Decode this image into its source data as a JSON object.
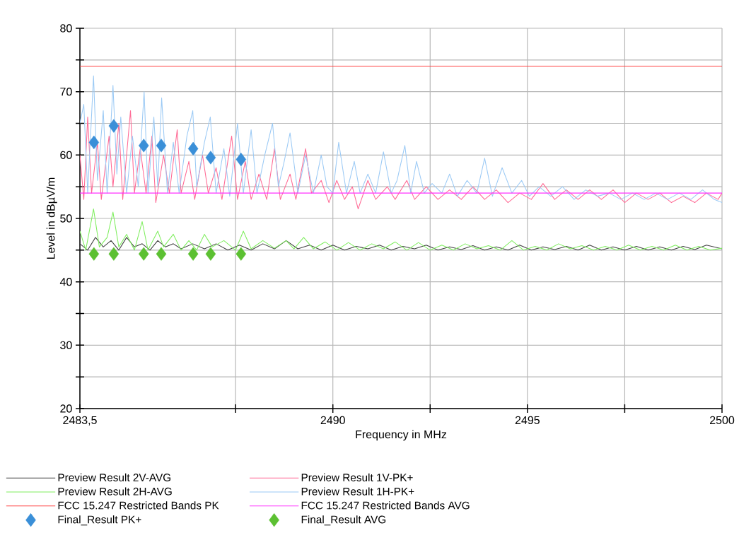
{
  "chart_data": {
    "type": "line",
    "xlabel": "Frequency in MHz",
    "ylabel": "Level in dBµV/m",
    "xlim": [
      2483.5,
      2500
    ],
    "ylim": [
      20,
      80
    ],
    "xticks": [
      {
        "value": 2483.5,
        "label": "2483,5"
      },
      {
        "value": 2487.5,
        "label": null
      },
      2490,
      {
        "value": 2492.5,
        "label": null
      },
      2495,
      {
        "value": 2497.5,
        "label": null
      },
      2500
    ],
    "yticks": [
      20,
      {
        "value": 25,
        "label": null
      },
      30,
      {
        "value": 35,
        "label": null
      },
      40,
      {
        "value": 45,
        "label": null
      },
      50,
      {
        "value": 55,
        "label": null
      },
      60,
      {
        "value": 65,
        "label": null
      },
      70,
      {
        "value": 75,
        "label": null
      },
      80
    ],
    "grid": true,
    "legend": "bottom",
    "line_style": "solid",
    "series": [
      {
        "name": "Preview Result 2V-AVG",
        "color": "#404040",
        "x": [
          2483.5,
          2483.7,
          2483.9,
          2484.1,
          2484.3,
          2484.5,
          2484.7,
          2484.9,
          2485.1,
          2485.3,
          2485.5,
          2485.7,
          2485.9,
          2486.1,
          2486.4,
          2486.7,
          2487.0,
          2487.3,
          2487.6,
          2487.9,
          2488.2,
          2488.5,
          2488.8,
          2489.1,
          2489.4,
          2489.7,
          2490.0,
          2490.3,
          2490.6,
          2490.9,
          2491.2,
          2491.5,
          2491.8,
          2492.1,
          2492.4,
          2492.7,
          2493.0,
          2493.3,
          2493.6,
          2493.9,
          2494.2,
          2494.5,
          2494.8,
          2495.1,
          2495.4,
          2495.7,
          2496.0,
          2496.3,
          2496.6,
          2496.9,
          2497.2,
          2497.5,
          2497.8,
          2498.1,
          2498.4,
          2498.7,
          2499.0,
          2499.3,
          2499.6,
          2500
        ],
        "values": [
          46,
          45,
          47,
          45.5,
          46.5,
          45,
          47,
          45.5,
          46,
          45,
          46.5,
          45.5,
          46,
          45.2,
          46,
          45.2,
          46,
          45,
          45.8,
          45,
          46,
          45.2,
          46.5,
          45.2,
          45.8,
          45,
          45.8,
          45,
          45.6,
          45.2,
          45.8,
          45,
          45.6,
          45.2,
          45.8,
          45,
          45.5,
          45.1,
          45.7,
          45,
          45.5,
          45,
          45.8,
          45,
          45.5,
          45.1,
          45.6,
          45,
          45.8,
          45,
          45.5,
          45,
          45.6,
          45,
          45.5,
          45,
          45.6,
          45.1,
          45.8,
          45.2
        ]
      },
      {
        "name": "Preview Result 1V-PK+",
        "color": "#ff6a95",
        "x": [
          2483.5,
          2483.6,
          2483.7,
          2483.8,
          2483.95,
          2484.05,
          2484.25,
          2484.35,
          2484.5,
          2484.6,
          2484.8,
          2484.9,
          2485.05,
          2485.2,
          2485.35,
          2485.45,
          2485.65,
          2485.8,
          2486.0,
          2486.1,
          2486.3,
          2486.45,
          2486.65,
          2486.8,
          2487.0,
          2487.15,
          2487.4,
          2487.55,
          2487.75,
          2487.9,
          2488.1,
          2488.3,
          2488.5,
          2488.65,
          2488.9,
          2489.05,
          2489.3,
          2489.45,
          2489.7,
          2489.9,
          2490.1,
          2490.3,
          2490.5,
          2490.65,
          2490.9,
          2491.1,
          2491.4,
          2491.6,
          2491.9,
          2492.1,
          2492.4,
          2492.7,
          2493.0,
          2493.3,
          2493.6,
          2493.9,
          2494.2,
          2494.5,
          2494.8,
          2495.1,
          2495.4,
          2495.7,
          2496.0,
          2496.3,
          2496.6,
          2496.9,
          2497.2,
          2497.5,
          2497.8,
          2498.1,
          2498.4,
          2498.7,
          2499.0,
          2499.3,
          2499.6,
          2499.9,
          2500
        ],
        "values": [
          60,
          53,
          66,
          54,
          62,
          53,
          63,
          55,
          65,
          53,
          67,
          54,
          61,
          54,
          63,
          52.5,
          60,
          54,
          64,
          54,
          59,
          53,
          60,
          54,
          58,
          53,
          63,
          53,
          59,
          53,
          57,
          53,
          61,
          53,
          57,
          53,
          61,
          54,
          56,
          52.5,
          56,
          53,
          55,
          51.5,
          56,
          53,
          55,
          53,
          56,
          53,
          55,
          53,
          54.5,
          53,
          55,
          53,
          54.5,
          52.5,
          54,
          53,
          55.5,
          53,
          54.5,
          53,
          54.5,
          53,
          54.5,
          52.5,
          54,
          53,
          54,
          52.5,
          53.5,
          52.5,
          54,
          53,
          54
        ]
      },
      {
        "name": "Preview Result 2H-AVG",
        "color": "#80ee60",
        "x": [
          2483.5,
          2483.65,
          2483.85,
          2484.0,
          2484.2,
          2484.35,
          2484.5,
          2484.7,
          2484.9,
          2485.1,
          2485.25,
          2485.5,
          2485.65,
          2485.9,
          2486.1,
          2486.3,
          2486.5,
          2486.7,
          2486.9,
          2487.2,
          2487.5,
          2487.7,
          2487.9,
          2488.2,
          2488.5,
          2488.8,
          2489.0,
          2489.25,
          2489.5,
          2489.8,
          2490.1,
          2490.4,
          2490.7,
          2491.0,
          2491.3,
          2491.6,
          2491.9,
          2492.2,
          2492.5,
          2492.8,
          2493.1,
          2493.4,
          2493.7,
          2494.0,
          2494.3,
          2494.6,
          2494.9,
          2495.2,
          2495.5,
          2495.8,
          2496.1,
          2496.4,
          2496.7,
          2497.0,
          2497.3,
          2497.6,
          2497.9,
          2498.2,
          2498.5,
          2498.8,
          2499.1,
          2499.4,
          2499.7,
          2500
        ],
        "values": [
          48,
          45,
          51.5,
          45.5,
          47,
          51,
          45.5,
          47.5,
          45,
          49.5,
          45,
          48,
          45.5,
          47.5,
          45,
          46.5,
          45,
          47.5,
          45.5,
          46.5,
          45,
          48,
          45.2,
          46.5,
          45.3,
          46.5,
          45.2,
          47,
          45.2,
          46.3,
          45,
          46.2,
          45,
          46,
          45.2,
          46.3,
          45,
          46.2,
          45,
          45.8,
          45,
          46,
          45.2,
          45.7,
          45,
          46.5,
          45,
          45.6,
          45,
          46,
          45.2,
          45.7,
          45,
          45.6,
          45,
          45.8,
          45,
          45.6,
          45,
          45.8,
          45,
          45.6,
          45,
          45.3
        ]
      },
      {
        "name": "Preview Result 1H-PK+",
        "color": "#9ccaf5",
        "x": [
          2483.5,
          2483.6,
          2483.7,
          2483.85,
          2483.95,
          2484.1,
          2484.2,
          2484.35,
          2484.45,
          2484.55,
          2484.7,
          2484.85,
          2485.0,
          2485.15,
          2485.25,
          2485.4,
          2485.5,
          2485.6,
          2485.75,
          2485.9,
          2486.05,
          2486.25,
          2486.4,
          2486.5,
          2486.7,
          2486.85,
          2487.0,
          2487.2,
          2487.35,
          2487.55,
          2487.7,
          2487.9,
          2488.05,
          2488.25,
          2488.45,
          2488.6,
          2488.75,
          2488.9,
          2489.1,
          2489.3,
          2489.5,
          2489.7,
          2489.85,
          2490.0,
          2490.15,
          2490.35,
          2490.55,
          2490.7,
          2490.9,
          2491.1,
          2491.3,
          2491.5,
          2491.65,
          2491.85,
          2492.0,
          2492.15,
          2492.35,
          2492.55,
          2492.8,
          2493.0,
          2493.2,
          2493.45,
          2493.7,
          2493.9,
          2494.1,
          2494.35,
          2494.6,
          2494.85,
          2495.05,
          2495.3,
          2495.6,
          2495.9,
          2496.2,
          2496.5,
          2496.8,
          2497.1,
          2497.4,
          2497.7,
          2498.0,
          2498.3,
          2498.6,
          2498.9,
          2499.2,
          2499.5,
          2499.8,
          2500
        ],
        "values": [
          65,
          68,
          54,
          72.5,
          56,
          67,
          54,
          71,
          57,
          66,
          54,
          63,
          55,
          70,
          54,
          66,
          55,
          69,
          54,
          62,
          54,
          63,
          67,
          55,
          62,
          66,
          54,
          61,
          53.5,
          65,
          54,
          64,
          54,
          60,
          65,
          55,
          59,
          63.5,
          54,
          60,
          54,
          60,
          55,
          54,
          62,
          54,
          59,
          54,
          57,
          54,
          60.5,
          54,
          56,
          61.5,
          54,
          59,
          54,
          55.5,
          54,
          57,
          53.5,
          56,
          54,
          59.5,
          53.5,
          58,
          54,
          56,
          53.5,
          55,
          53.5,
          55,
          53,
          54.5,
          53.5,
          54,
          53,
          54,
          53,
          54,
          53,
          54,
          53,
          54.5,
          53,
          52.5
        ]
      },
      {
        "name": "FCC 15.247 Restricted Bands PK",
        "color": "#ff4040",
        "x": [
          2483.5,
          2500
        ],
        "values": [
          74,
          74
        ]
      },
      {
        "name": "FCC 15.247 Restricted Bands AVG",
        "color": "#ff30ff",
        "x": [
          2483.5,
          2500
        ],
        "values": [
          54,
          54
        ]
      },
      {
        "name": "Final_Result PK+",
        "color": "#3a8fd8",
        "type": "scatter",
        "marker": "diamond",
        "x": [
          2483.86,
          2484.37,
          2485.14,
          2485.59,
          2486.41,
          2486.86,
          2487.64
        ],
        "values": [
          62.0,
          64.6,
          61.5,
          61.5,
          61.0,
          59.6,
          59.3
        ]
      },
      {
        "name": "Final_Result AVG",
        "color": "#5cc032",
        "type": "scatter",
        "marker": "diamond",
        "x": [
          2483.86,
          2484.37,
          2485.14,
          2485.59,
          2486.41,
          2486.86,
          2487.64
        ],
        "values": [
          44.4,
          44.4,
          44.4,
          44.4,
          44.4,
          44.4,
          44.4
        ]
      }
    ]
  }
}
